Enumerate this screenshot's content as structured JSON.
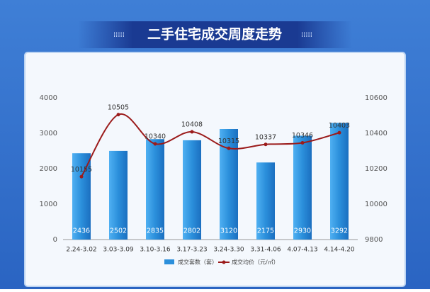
{
  "chart_data": {
    "type": "combo",
    "title": "二手住宅成交周度走势",
    "categories": [
      "2.24-3.02",
      "3.03-3.09",
      "3.10-3.16",
      "3.17-3.23",
      "3.24-3.30",
      "3.31-4.06",
      "4.07-4.13",
      "4.14-4.20"
    ],
    "series": [
      {
        "name": "成交套数（套）",
        "type": "bar",
        "color": "#2b8fdb",
        "values": [
          2436,
          2502,
          2835,
          2802,
          3120,
          2175,
          2930,
          3292
        ]
      },
      {
        "name": "成交均价（元/㎡）",
        "type": "line",
        "axis": "y2",
        "color": "#9b1b1b",
        "values": [
          10155,
          10505,
          10340,
          10408,
          10315,
          10337,
          10346,
          10403
        ]
      }
    ],
    "ylim": [
      0,
      4000
    ],
    "yticks": [
      0,
      1000,
      2000,
      3000,
      4000
    ],
    "y2lim": [
      9800,
      10600
    ],
    "y2ticks": [
      9800,
      10000,
      10200,
      10400,
      10600
    ]
  }
}
